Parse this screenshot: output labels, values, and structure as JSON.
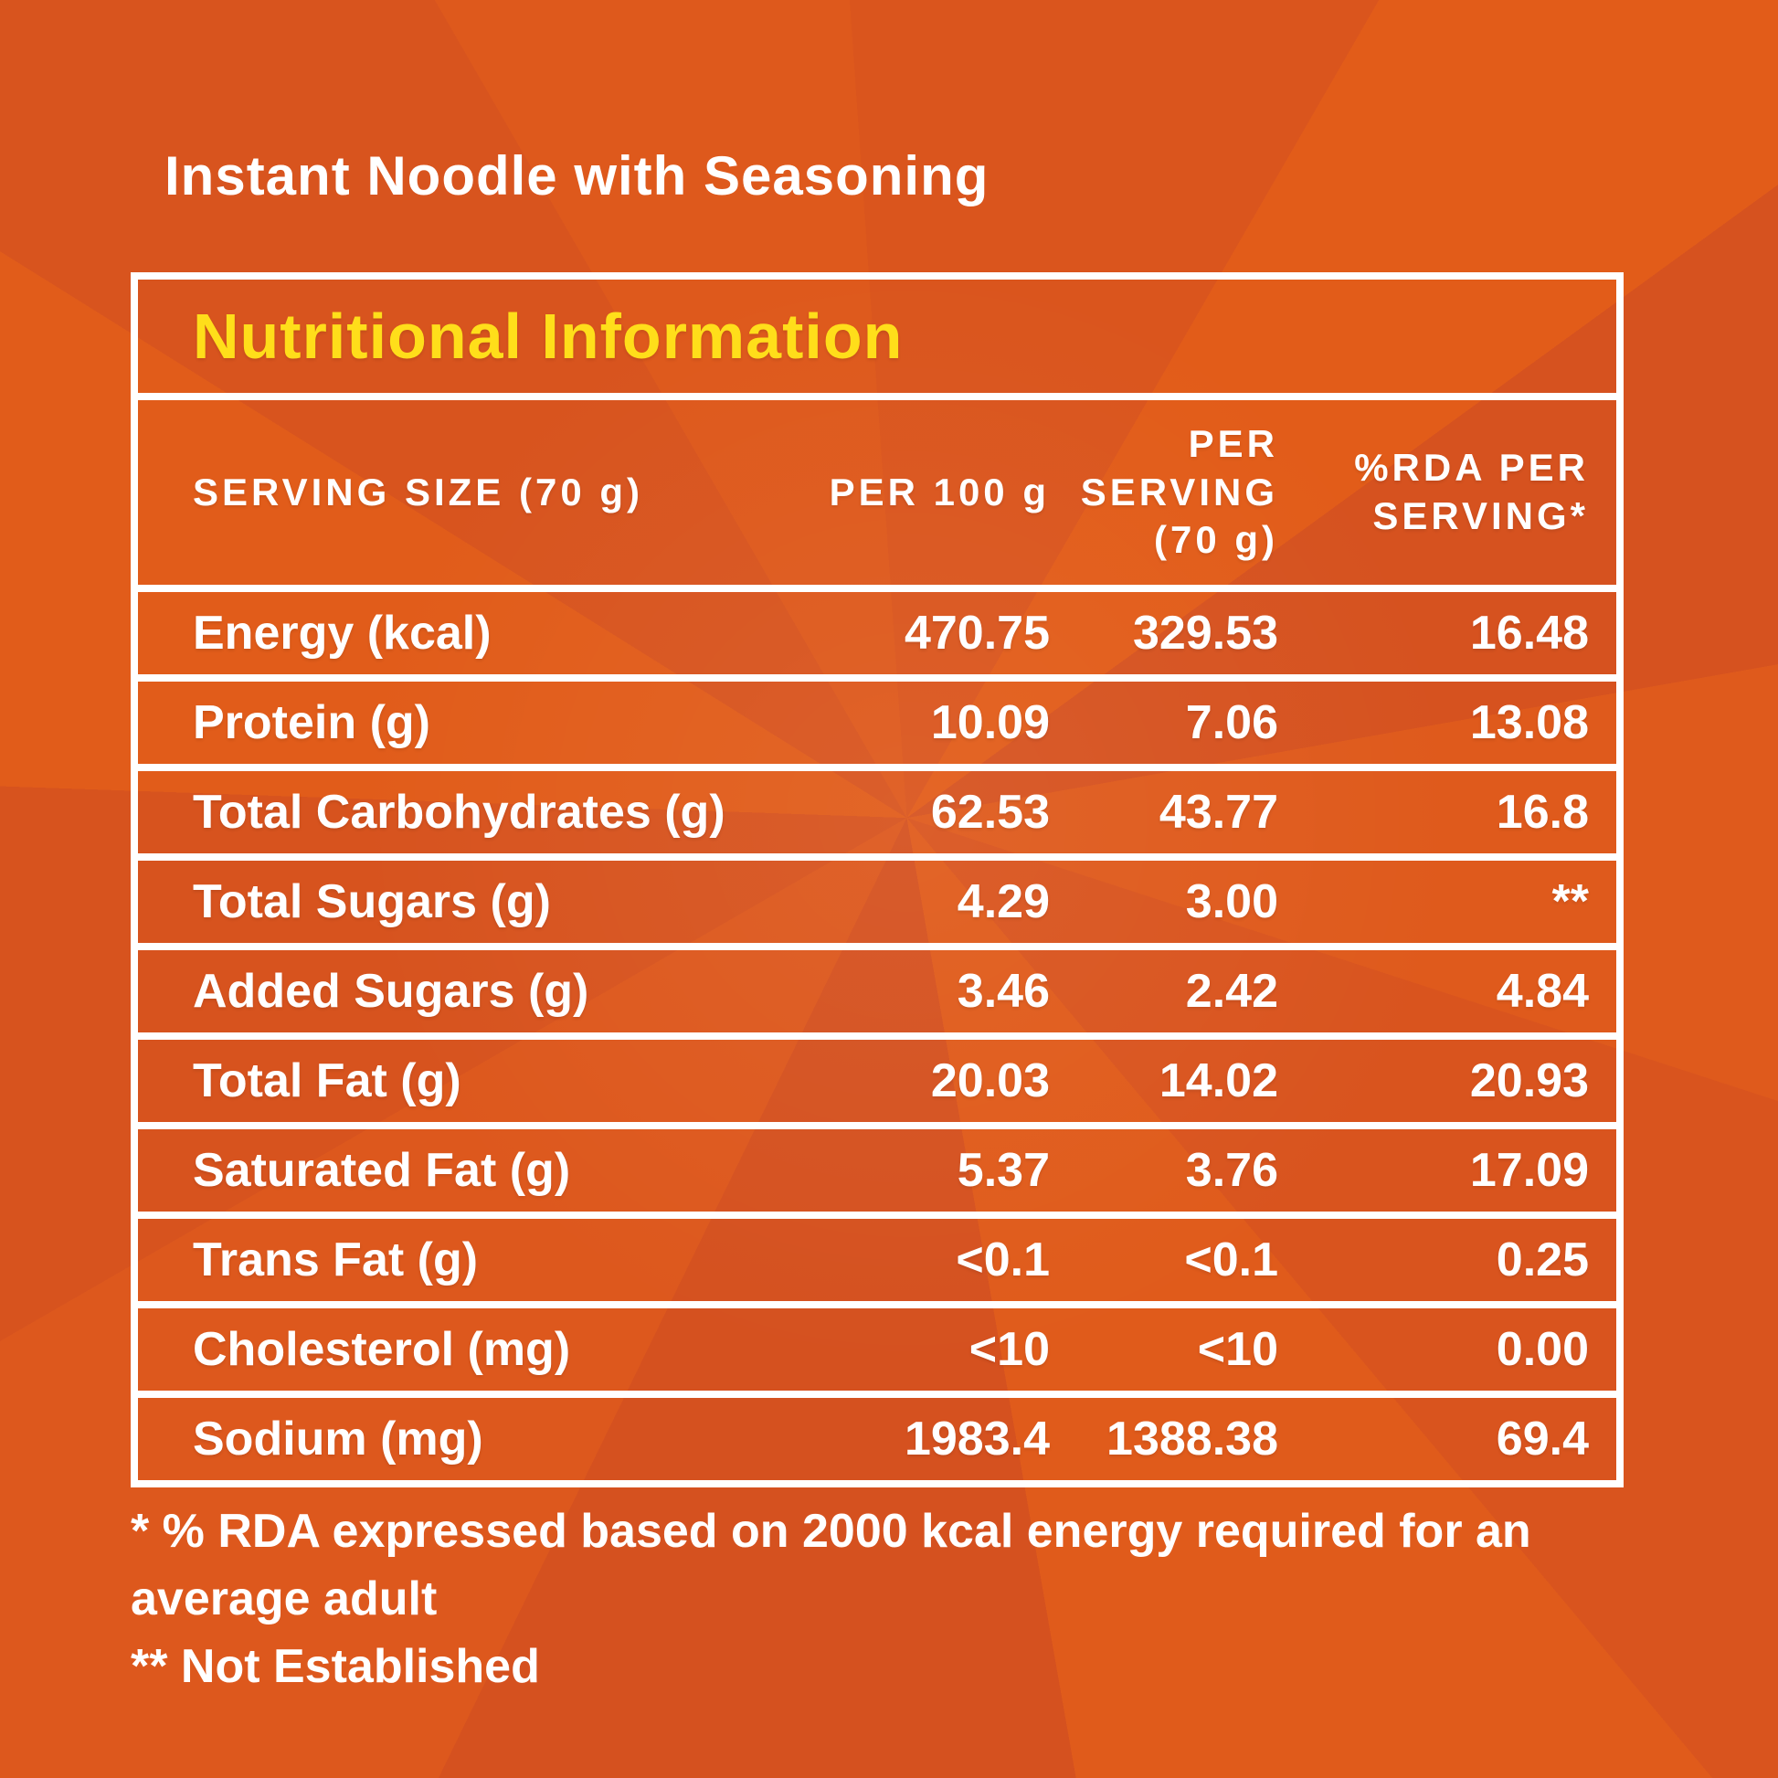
{
  "product_title": "Instant Noodle with Seasoning",
  "table": {
    "title": "Nutritional Information",
    "columns": {
      "serving_size": "SERVING SIZE (70 g)",
      "per_100g": "PER 100 g",
      "per_serving": "PER SERVING (70 g)",
      "rda_per_serving": "%RDA PER SERVING*"
    },
    "rows": [
      {
        "label": "Energy (kcal)",
        "per_100g": "470.75",
        "per_serving": "329.53",
        "rda_per_serving": "16.48"
      },
      {
        "label": "Protein (g)",
        "per_100g": "10.09",
        "per_serving": "7.06",
        "rda_per_serving": "13.08"
      },
      {
        "label": "Total Carbohydrates (g)",
        "per_100g": "62.53",
        "per_serving": "43.77",
        "rda_per_serving": "16.8"
      },
      {
        "label": "Total Sugars (g)",
        "per_100g": "4.29",
        "per_serving": "3.00",
        "rda_per_serving": "**"
      },
      {
        "label": "Added Sugars (g)",
        "per_100g": "3.46",
        "per_serving": "2.42",
        "rda_per_serving": "4.84"
      },
      {
        "label": "Total Fat (g)",
        "per_100g": "20.03",
        "per_serving": "14.02",
        "rda_per_serving": "20.93"
      },
      {
        "label": "Saturated Fat (g)",
        "per_100g": "5.37",
        "per_serving": "3.76",
        "rda_per_serving": "17.09"
      },
      {
        "label": "Trans Fat (g)",
        "per_100g": "<0.1",
        "per_serving": "<0.1",
        "rda_per_serving": "0.25"
      },
      {
        "label": "Cholesterol (mg)",
        "per_100g": "<10",
        "per_serving": "<10",
        "rda_per_serving": "0.00"
      },
      {
        "label": "Sodium (mg)",
        "per_100g": "1983.4",
        "per_serving": "1388.38",
        "rda_per_serving": "69.4"
      }
    ]
  },
  "footnotes": {
    "rda_note": "* % RDA expressed based on 2000 kcal energy required for an average adult",
    "not_established_note": "** Not Established"
  },
  "colors": {
    "background_orange": "#D9541E",
    "accent_yellow": "#FFDE1A",
    "text_white": "#FFFFFF",
    "border_white": "#FFFFFF"
  }
}
